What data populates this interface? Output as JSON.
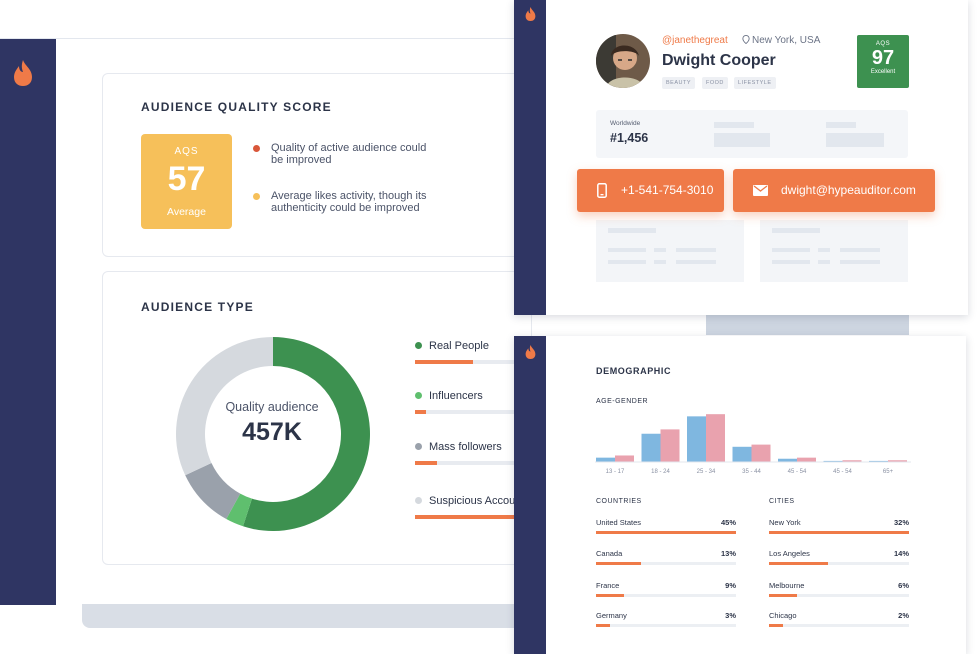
{
  "aqs_card": {
    "title": "AUDIENCE QUALITY SCORE",
    "box_label": "AQS",
    "score": "57",
    "rating": "Average",
    "points": [
      {
        "text": "Quality of active audience could be improved",
        "color": "#d9573a"
      },
      {
        "text": "Average likes activity, though its authenticity could be improved",
        "color": "#f6c05a"
      }
    ]
  },
  "type_card": {
    "title": "AUDIENCE TYPE",
    "center_caption": "Quality audience",
    "center_value": "457K",
    "legend": [
      {
        "label": "Real People",
        "color": "#3d9150",
        "fill": 0.62
      },
      {
        "label": "Influencers",
        "color": "#5fbf6e",
        "fill": 0.1
      },
      {
        "label": "Mass followers",
        "color": "#9aa1ab",
        "fill": 0.18
      },
      {
        "label": "Suspicious Accounts",
        "color": "#d5d9de",
        "fill": 0.7
      }
    ],
    "segments": [
      {
        "name": "real-people",
        "value": 0.55,
        "color": "#3d9150"
      },
      {
        "name": "influencers",
        "value": 0.03,
        "color": "#5fbf6e"
      },
      {
        "name": "mass-followers",
        "value": 0.1,
        "color": "#9aa1ab"
      },
      {
        "name": "suspicious",
        "value": 0.32,
        "color": "#d5d9de"
      }
    ]
  },
  "profile": {
    "handle": "@janethegreat",
    "location": "New York, USA",
    "name": "Dwight Cooper",
    "tags": [
      "BEAUTY",
      "FOOD",
      "LIFESTYLE"
    ],
    "aqs_label": "AQS",
    "aqs_score": "97",
    "aqs_rating": "Excellent",
    "rank_caption": "Worldwide",
    "rank_value": "#1,456",
    "phone": "+1-541-754-3010",
    "email": "dwight@hypeauditor.com"
  },
  "demographic": {
    "title": "DEMOGRAPHIC",
    "age_gender_label": "AGE-GENDER",
    "age_groups": [
      "13 - 17",
      "18 - 24",
      "25 - 34",
      "35 - 44",
      "45 - 54",
      "45 - 54",
      "65+"
    ],
    "male": [
      2,
      13,
      21,
      7,
      1.5,
      0.5,
      0.5
    ],
    "female": [
      3,
      15,
      22,
      8,
      2,
      0.8,
      0.8
    ],
    "male_color": "#7fb7e0",
    "female_color": "#e9a2ae",
    "countries_label": "COUNTRIES",
    "cities_label": "CITIES",
    "countries": [
      {
        "name": "United States",
        "pct": "45%",
        "fill": 1.0
      },
      {
        "name": "Canada",
        "pct": "13%",
        "fill": 0.32
      },
      {
        "name": "France",
        "pct": "9%",
        "fill": 0.2
      },
      {
        "name": "Germany",
        "pct": "3%",
        "fill": 0.1
      }
    ],
    "cities": [
      {
        "name": "New York",
        "pct": "32%",
        "fill": 1.0
      },
      {
        "name": "Los Angeles",
        "pct": "14%",
        "fill": 0.42
      },
      {
        "name": "Melbourne",
        "pct": "6%",
        "fill": 0.2
      },
      {
        "name": "Chicago",
        "pct": "2%",
        "fill": 0.1
      }
    ]
  },
  "icons": {
    "logo": "flame-icon",
    "phone": "phone-icon",
    "email": "mail-icon",
    "location": "location-pin-icon"
  },
  "colors": {
    "sidebar": "#2f3563",
    "accent": "#ef7a48"
  }
}
